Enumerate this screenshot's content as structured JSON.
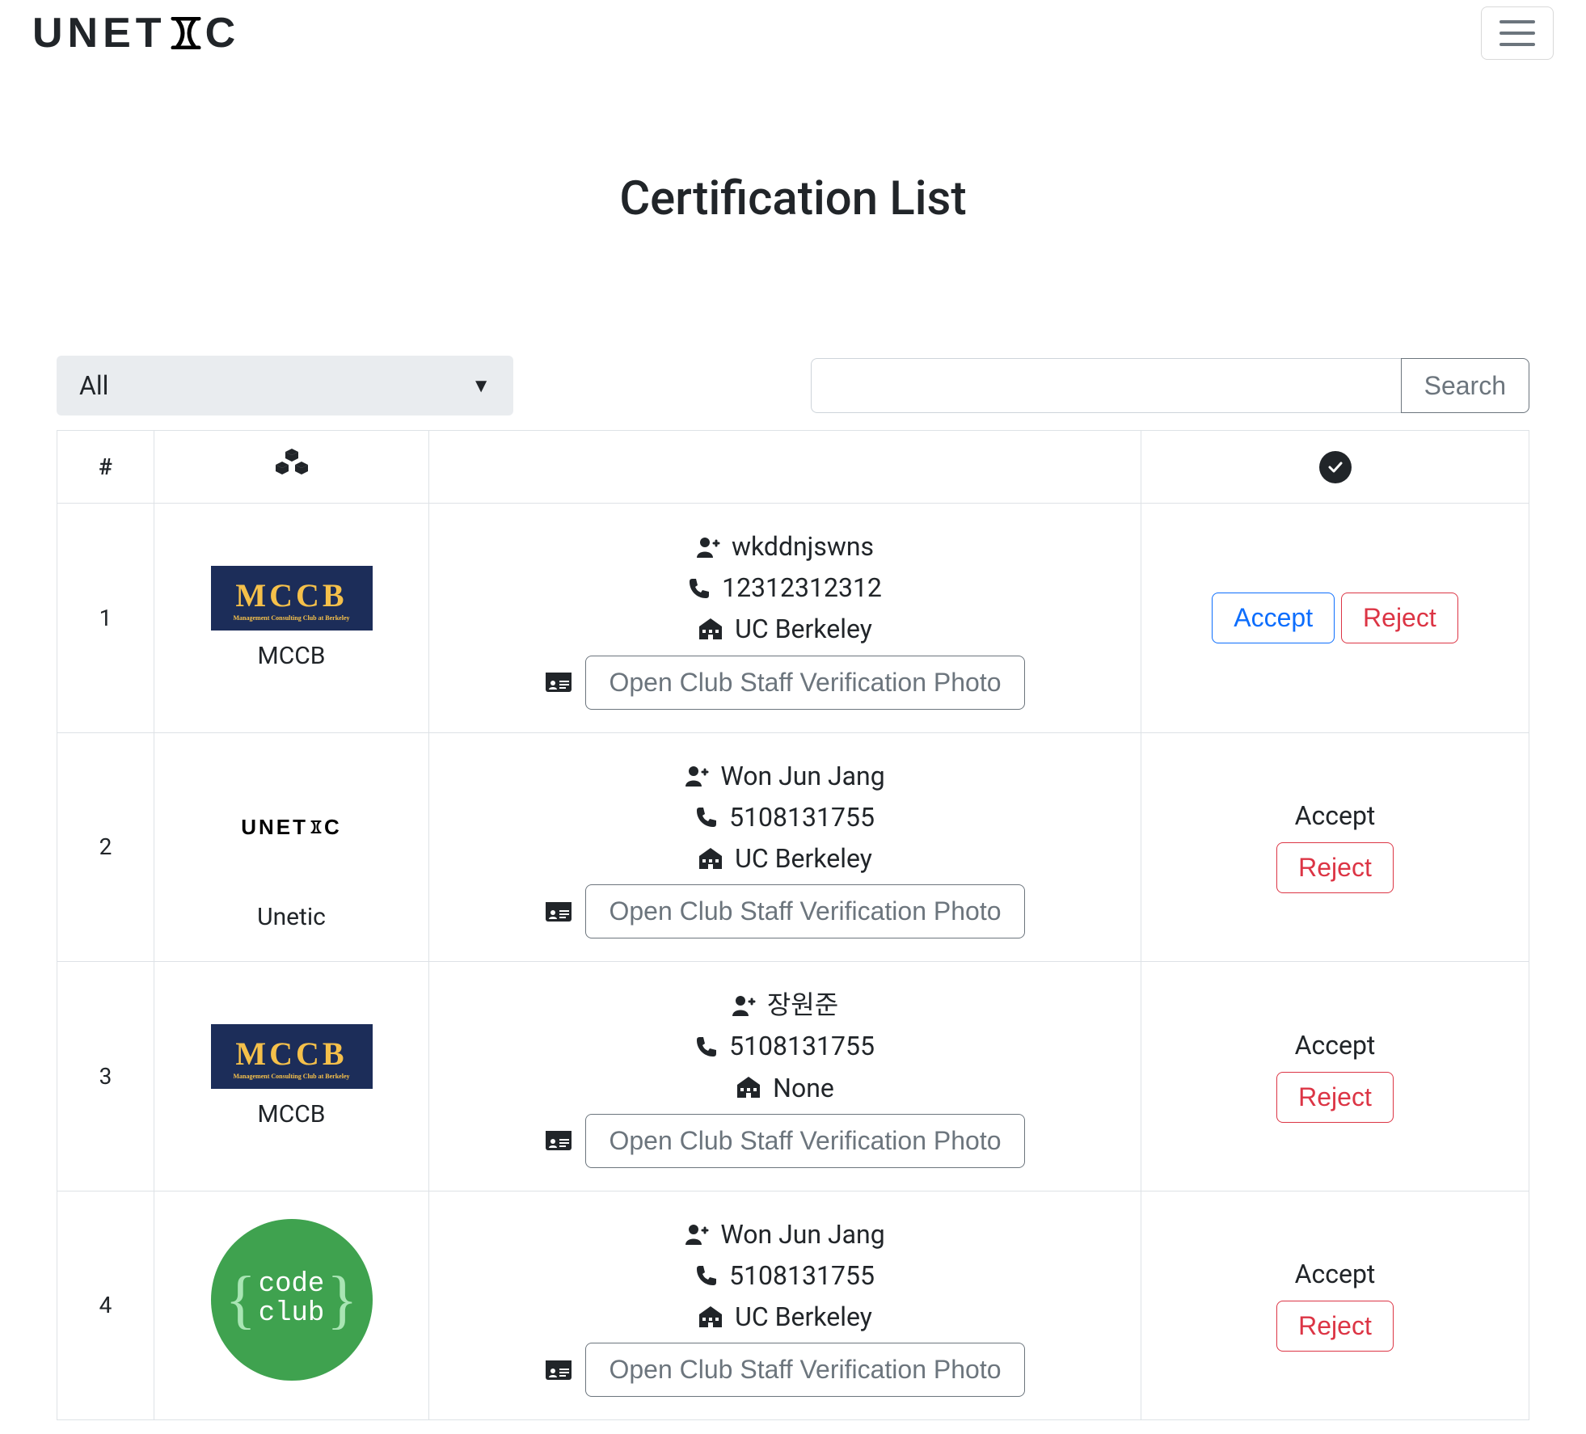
{
  "brand": {
    "name": "UNETIC"
  },
  "page": {
    "title": "Certification List"
  },
  "filter": {
    "selected": "All",
    "options": [
      "All"
    ]
  },
  "search": {
    "placeholder": "",
    "button": "Search"
  },
  "table": {
    "headers": {
      "index": "#"
    },
    "open_photo_label": "Open Club Staff Verification Photo",
    "accept_label": "Accept",
    "reject_label": "Reject",
    "rows": [
      {
        "num": "1",
        "club": {
          "name": "MCCB",
          "badge": "mccb",
          "sub": "Management Consulting Club at Berkeley"
        },
        "user": "wkddnjswns",
        "phone": "12312312312",
        "school": "UC Berkeley",
        "accept_state": "button"
      },
      {
        "num": "2",
        "club": {
          "name": "Unetic",
          "badge": "unetic"
        },
        "user": "Won Jun Jang",
        "phone": "5108131755",
        "school": "UC Berkeley",
        "accept_state": "text"
      },
      {
        "num": "3",
        "club": {
          "name": "MCCB",
          "badge": "mccb",
          "sub": "Management Consulting Club at Berkeley"
        },
        "user": "장원준",
        "phone": "5108131755",
        "school": "None",
        "accept_state": "text"
      },
      {
        "num": "4",
        "club": {
          "name": "",
          "badge": "codeclub",
          "line1": "code",
          "line2": "club"
        },
        "user": "Won Jun Jang",
        "phone": "5108131755",
        "school": "UC Berkeley",
        "accept_state": "text"
      }
    ]
  },
  "colors": {
    "accept_border": "#0d6efd",
    "reject_border": "#dc3545",
    "muted": "#6c757d",
    "mccb_bg": "#1c2d59",
    "mccb_fg": "#f5c04a",
    "codeclub_bg": "#3fa24f"
  }
}
